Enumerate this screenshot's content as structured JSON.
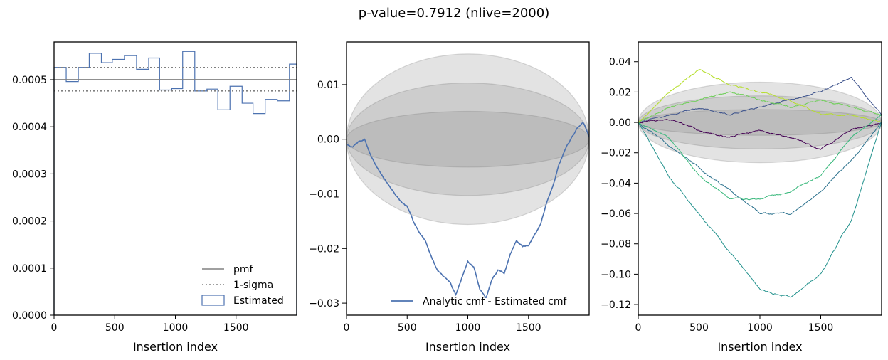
{
  "figure": {
    "title": "p-value=0.7912 (nlive=2000)"
  },
  "chart_data": [
    {
      "type": "histogram",
      "xlabel": "Insertion index",
      "ylabel": "",
      "xlim": [
        0,
        2000
      ],
      "ylim": [
        0,
        0.00058
      ],
      "xticks": [
        0,
        500,
        1000,
        1500
      ],
      "xtick_labels": [
        "0",
        "500",
        "1000",
        "1500"
      ],
      "yticks": [
        0,
        0.0001,
        0.0002,
        0.0003,
        0.0004,
        0.0005
      ],
      "ytick_labels": [
        "0.0000",
        "0.0001",
        "0.0002",
        "0.0003",
        "0.0004",
        "0.0005"
      ],
      "pmf": 0.0005,
      "sigma_band": [
        0.000476,
        0.000526
      ],
      "bin_edges": [
        0,
        100,
        200,
        290,
        390,
        480,
        580,
        680,
        780,
        870,
        970,
        1060,
        1160,
        1260,
        1350,
        1450,
        1550,
        1640,
        1740,
        1840,
        1940,
        2000
      ],
      "bin_values": [
        0.000526,
        0.000496,
        0.000526,
        0.000556,
        0.000536,
        0.000543,
        0.000551,
        0.000522,
        0.000546,
        0.000478,
        0.000481,
        0.00056,
        0.000476,
        0.00048,
        0.000436,
        0.000486,
        0.00045,
        0.000428,
        0.000458,
        0.000455,
        0.000533
      ],
      "legend": {
        "position": "lower right",
        "entries": [
          {
            "label": "pmf",
            "style": "solid",
            "color": "#808080"
          },
          {
            "label": "1-sigma",
            "style": "dotted",
            "color": "#808080"
          },
          {
            "label": "Estimated",
            "style": "box",
            "color": "#4c72b0"
          }
        ]
      },
      "colors": {
        "estimated": "#4c72b0",
        "reference": "#808080"
      }
    },
    {
      "type": "line",
      "xlabel": "Insertion index",
      "xlim": [
        0,
        2000
      ],
      "ylim": [
        -0.0322,
        0.0178
      ],
      "xticks": [
        0,
        500,
        1000,
        1500
      ],
      "xtick_labels": [
        "0",
        "500",
        "1000",
        "1500"
      ],
      "yticks": [
        0.01,
        0.0,
        -0.01,
        -0.02,
        -0.03
      ],
      "ytick_labels": [
        "0.01",
        "0.00",
        "−0.01",
        "−0.02",
        "−0.03"
      ],
      "sigma_bands": [
        0.0051,
        0.0103,
        0.0156
      ],
      "series": [
        {
          "name": "Analytic cmf - Estimated cmf",
          "color": "#4c72b0",
          "x": [
            0,
            50,
            100,
            150,
            200,
            250,
            300,
            350,
            400,
            450,
            500,
            550,
            600,
            650,
            700,
            750,
            800,
            850,
            900,
            950,
            1000,
            1050,
            1100,
            1150,
            1200,
            1250,
            1300,
            1350,
            1400,
            1450,
            1500,
            1550,
            1600,
            1650,
            1700,
            1750,
            1800,
            1850,
            1900,
            1950,
            2000
          ],
          "y": [
            -0.001,
            -0.0015,
            -0.0005,
            0.0,
            -0.003,
            -0.005,
            -0.007,
            -0.0085,
            -0.01,
            -0.0115,
            -0.0125,
            -0.015,
            -0.017,
            -0.0185,
            -0.0215,
            -0.024,
            -0.025,
            -0.026,
            -0.0285,
            -0.0255,
            -0.0225,
            -0.0235,
            -0.0275,
            -0.029,
            -0.0255,
            -0.024,
            -0.0245,
            -0.021,
            -0.0185,
            -0.0195,
            -0.0195,
            -0.0175,
            -0.0155,
            -0.0115,
            -0.0085,
            -0.0045,
            -0.002,
            0.0,
            0.0018,
            0.003,
            0.0005
          ]
        }
      ],
      "legend": {
        "position": "lower right",
        "entries": [
          {
            "label": "Analytic cmf - Estimated cmf",
            "style": "solid",
            "color": "#4c72b0"
          }
        ]
      }
    },
    {
      "type": "line",
      "xlabel": "Insertion index",
      "xlim": [
        0,
        2000
      ],
      "ylim": [
        -0.127,
        0.053
      ],
      "xticks": [
        0,
        500,
        1000,
        1500
      ],
      "xtick_labels": [
        "0",
        "500",
        "1000",
        "1500"
      ],
      "yticks": [
        0.04,
        0.02,
        0.0,
        -0.02,
        -0.04,
        -0.06,
        -0.08,
        -0.1,
        -0.12
      ],
      "ytick_labels": [
        "0.04",
        "0.02",
        "0.00",
        "−0.02",
        "−0.04",
        "−0.06",
        "−0.08",
        "−0.10",
        "−0.12"
      ],
      "sigma_bands": [
        0.0085,
        0.0175,
        0.0265
      ],
      "series": [
        {
          "color": "#440154",
          "x": [
            0,
            250,
            500,
            750,
            1000,
            1250,
            1500,
            1750,
            2000
          ],
          "y": [
            0.0,
            0.002,
            -0.005,
            -0.01,
            -0.005,
            -0.01,
            -0.018,
            -0.005,
            0.0
          ]
        },
        {
          "color": "#3b518b",
          "x": [
            0,
            250,
            500,
            750,
            1000,
            1250,
            1500,
            1750,
            2000
          ],
          "y": [
            0.0,
            0.005,
            0.01,
            0.005,
            0.01,
            0.015,
            0.02,
            0.03,
            0.005
          ]
        },
        {
          "color": "#2c728e",
          "x": [
            0,
            250,
            500,
            750,
            1000,
            1250,
            1500,
            1750,
            2000
          ],
          "y": [
            0.0,
            -0.015,
            -0.03,
            -0.045,
            -0.06,
            -0.06,
            -0.045,
            -0.025,
            0.0
          ]
        },
        {
          "color": "#21918c",
          "x": [
            0,
            250,
            500,
            750,
            1000,
            1250,
            1500,
            1750,
            2000
          ],
          "y": [
            0.0,
            -0.035,
            -0.06,
            -0.085,
            -0.11,
            -0.115,
            -0.1,
            -0.065,
            0.0
          ]
        },
        {
          "color": "#35b779",
          "x": [
            0,
            250,
            500,
            750,
            1000,
            1250,
            1500,
            1750,
            2000
          ],
          "y": [
            0.0,
            -0.01,
            -0.035,
            -0.05,
            -0.05,
            -0.045,
            -0.035,
            -0.01,
            0.005
          ]
        },
        {
          "color": "#6ece58",
          "x": [
            0,
            250,
            500,
            750,
            1000,
            1250,
            1500,
            1750,
            2000
          ],
          "y": [
            0.0,
            0.01,
            0.015,
            0.02,
            0.015,
            0.01,
            0.015,
            0.01,
            0.005
          ]
        },
        {
          "color": "#b5de2b",
          "x": [
            0,
            250,
            500,
            750,
            1000,
            1250,
            1500,
            1750,
            2000
          ],
          "y": [
            0.0,
            0.02,
            0.035,
            0.025,
            0.02,
            0.015,
            0.005,
            0.005,
            0.0
          ]
        }
      ]
    }
  ]
}
